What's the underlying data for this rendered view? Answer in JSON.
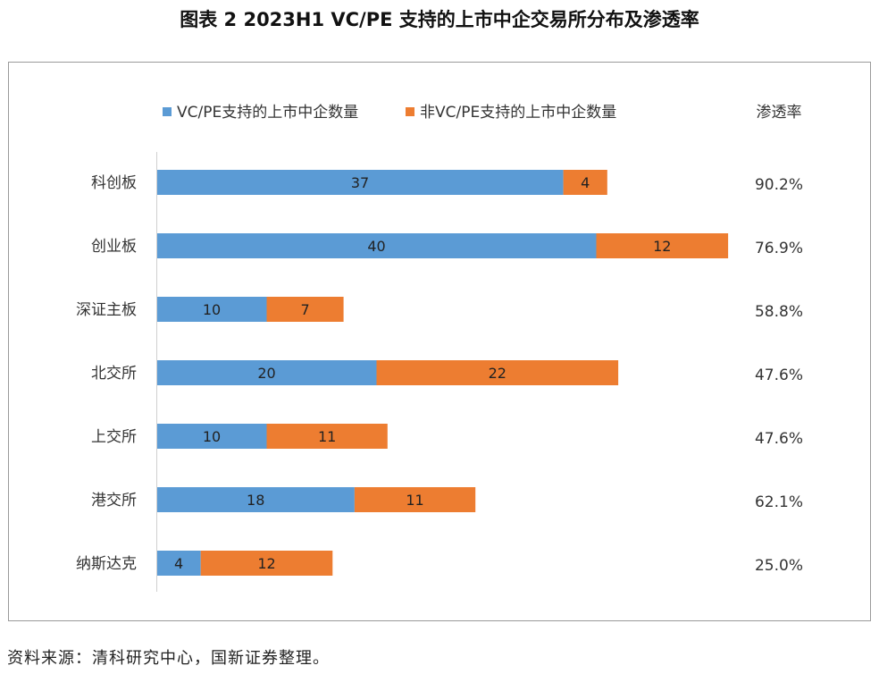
{
  "page_title": "图表 2  2023H1 VC/PE 支持的上市中企交易所分布及渗透率",
  "source_note": "资料来源：清科研究中心，国新证券整理。",
  "chart_data": {
    "type": "bar",
    "orientation": "horizontal",
    "stacked": true,
    "categories": [
      "科创板",
      "创业板",
      "深证主板",
      "北交所",
      "上交所",
      "港交所",
      "纳斯达克"
    ],
    "series": [
      {
        "name": "VC/PE支持的上市中企数量",
        "color": "#5b9bd5",
        "values": [
          37,
          40,
          10,
          20,
          10,
          18,
          4
        ]
      },
      {
        "name": "非VC/PE支持的上市中企数量",
        "color": "#ed7d31",
        "values": [
          4,
          12,
          7,
          22,
          11,
          11,
          12
        ]
      }
    ],
    "rate_header": "渗透率",
    "rates": [
      "90.2%",
      "76.9%",
      "58.8%",
      "47.6%",
      "47.6%",
      "62.1%",
      "25.0%"
    ],
    "legend_position": "top",
    "grid": false
  }
}
